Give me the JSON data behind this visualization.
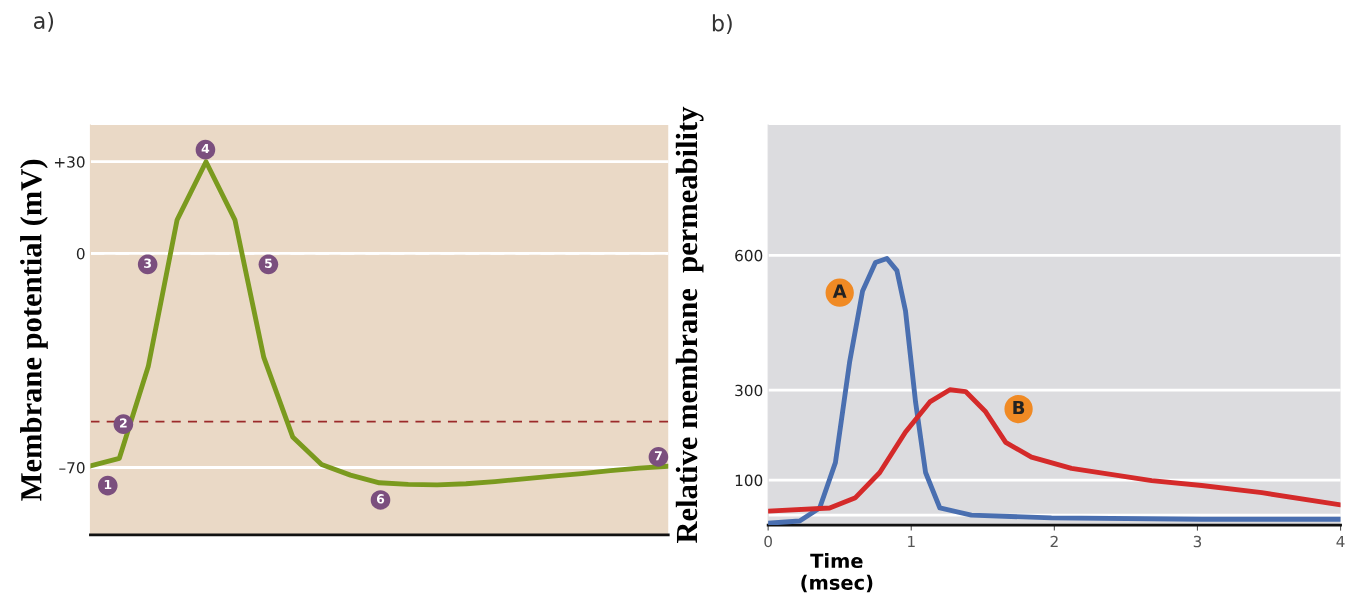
{
  "chart_data": [
    {
      "type": "line",
      "title": "a)",
      "ylabel": "Membrane potential (mV)",
      "categories": [
        null,
        null,
        null,
        null,
        null,
        null,
        null,
        null,
        null,
        null,
        null,
        null,
        null,
        null,
        null,
        null,
        null,
        null,
        null,
        null,
        null
      ],
      "series": [
        {
          "color": "#7a9a1e",
          "values": [
            -69.5,
            -67,
            -37,
            11,
            30,
            11,
            -34,
            -60,
            -69,
            -72.5,
            -75,
            -75.5,
            -75.7,
            -75.3,
            -74.6,
            -73.7,
            -72.8,
            -72,
            -71,
            -70.2,
            -69.6
          ]
        }
      ],
      "ylim": [
        -92,
        42
      ],
      "yticks": [
        {
          "value": 30,
          "label": "+30"
        },
        0,
        {
          "value": -70,
          "label": "–70"
        }
      ],
      "tick_labels": "y",
      "grid": "y",
      "ref_lines": [
        {
          "axis": "y",
          "value": 0,
          "color": "#ffffff",
          "line_style": "dashed"
        },
        {
          "axis": "y",
          "value": -55,
          "color": "#9b2a2a",
          "line_style": "dashed"
        }
      ],
      "annotations": [
        "1",
        "2",
        "3",
        "4",
        "5",
        "6",
        "7"
      ]
    },
    {
      "type": "line",
      "title": "b)",
      "xlabel": "Time\n(msec)",
      "ylabel": "Relative membrane  permeability",
      "series": [
        {
          "color": "#4a6fb0",
          "x": [
            0,
            0.22,
            0.36,
            0.47,
            0.57,
            0.66,
            0.75,
            0.83,
            0.9,
            0.96,
            1.03,
            1.1,
            1.2,
            1.42,
            1.98,
            3.03,
            4
          ],
          "values": [
            4,
            9,
            38,
            139,
            364,
            521,
            584,
            593,
            566,
            476,
            274,
            117,
            38,
            22,
            16,
            13,
            13
          ]
        },
        {
          "color": "#d42a2a",
          "x": [
            0,
            0.43,
            0.61,
            0.78,
            0.96,
            1.13,
            1.27,
            1.38,
            1.52,
            1.66,
            1.84,
            2.12,
            2.68,
            3.03,
            3.45,
            4
          ],
          "values": [
            31,
            38,
            61,
            117,
            207,
            274,
            301,
            297,
            252,
            184,
            151,
            126,
            99,
            88,
            72,
            45
          ]
        }
      ],
      "xlim": [
        0,
        4
      ],
      "ylim": [
        0,
        890
      ],
      "xticks": [
        0,
        1,
        2,
        3,
        4
      ],
      "yticks": [
        100,
        300,
        600
      ],
      "grid": "y",
      "ref_lines": [
        {
          "axis": "y",
          "value": 22,
          "color": "#ffffff"
        }
      ],
      "annotations": [
        {
          "text": "A",
          "x": 0.5,
          "y": 517
        },
        {
          "text": "B",
          "x": 1.75,
          "y": 258
        }
      ]
    }
  ]
}
